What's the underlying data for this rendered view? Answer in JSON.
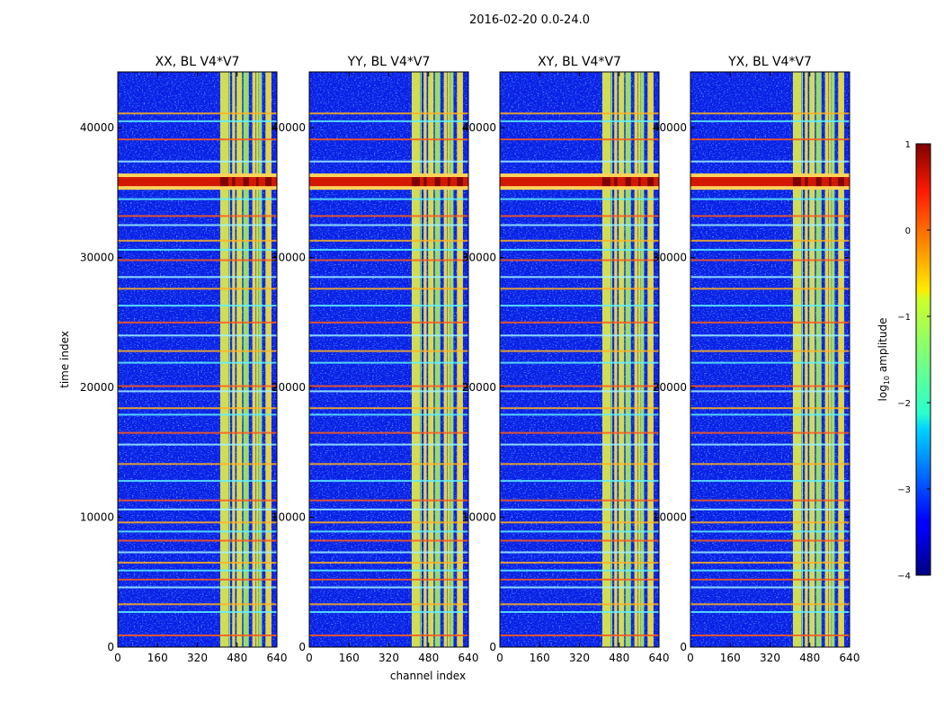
{
  "chart_data": {
    "type": "heatmap",
    "title": "2016-02-20 0.0-24.0",
    "xlabel": "channel index",
    "ylabel": "time index",
    "xlim": [
      0,
      640
    ],
    "ylim": [
      0,
      44300
    ],
    "xticks": [
      0,
      160,
      320,
      480,
      640
    ],
    "yticks": [
      0,
      10000,
      20000,
      30000,
      40000
    ],
    "panels": [
      {
        "title": "XX, BL V4*V7"
      },
      {
        "title": "YY, BL V4*V7"
      },
      {
        "title": "XY, BL V4*V7"
      },
      {
        "title": "YX, BL V4*V7"
      }
    ],
    "bright_channel_bands": [
      [
        412,
        445
      ],
      [
        446,
        452
      ],
      [
        460,
        472
      ],
      [
        478,
        500
      ],
      [
        505,
        527
      ],
      [
        541,
        555
      ],
      [
        557,
        566
      ],
      [
        567,
        580
      ],
      [
        594,
        618
      ]
    ],
    "flagged_time_rows": [
      900,
      2700,
      3300,
      4600,
      5200,
      5900,
      6500,
      7300,
      8200,
      8900,
      9600,
      10600,
      11300,
      12800,
      14100,
      15600,
      16500,
      17900,
      18400,
      19700,
      20100,
      21900,
      22800,
      24000,
      25000,
      26300,
      27600,
      28500,
      29800,
      30600,
      31300,
      32500,
      33200,
      34500,
      36000,
      37400,
      39100,
      40500,
      41100
    ],
    "hot_time_rows": [
      [
        35500,
        36200
      ]
    ],
    "colorbar": {
      "label": "log10 amplitude",
      "label_main": "log",
      "label_sub": "10",
      "label_rest": " amplitude",
      "min": -4,
      "max": 1,
      "ticks": [
        1,
        0,
        -1,
        -2,
        -3,
        -4
      ]
    }
  }
}
